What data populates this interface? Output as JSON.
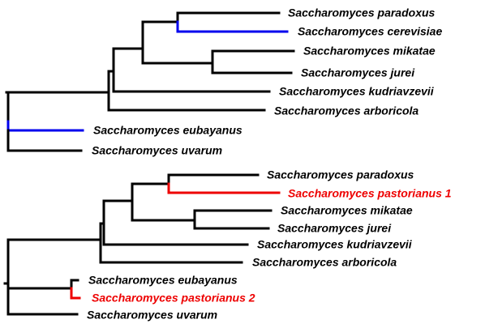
{
  "colors": {
    "default": "#000000",
    "hybrid_parent_branch": "#0000ee",
    "hybrid_branch": "#ee0000"
  },
  "trees": [
    {
      "leaves": [
        {
          "id": "paradoxus",
          "label": "Saccharomyces paradoxus",
          "highlight": "default"
        },
        {
          "id": "cerevisiae",
          "label": "Saccharomyces cerevisiae",
          "highlight": "hybrid_parent_branch"
        },
        {
          "id": "mikatae",
          "label": "Saccharomyces mikatae",
          "highlight": "default"
        },
        {
          "id": "jurei",
          "label": "Saccharomyces jurei",
          "highlight": "default"
        },
        {
          "id": "kudriavzevii",
          "label": "Saccharomyces kudriavzevii",
          "highlight": "default"
        },
        {
          "id": "arboricola",
          "label": "Saccharomyces arboricola",
          "highlight": "default"
        },
        {
          "id": "eubayanus",
          "label": "Saccharomyces eubayanus",
          "highlight": "hybrid_parent_branch"
        },
        {
          "id": "uvarum",
          "label": "Saccharomyces uvarum",
          "highlight": "default"
        }
      ]
    },
    {
      "leaves": [
        {
          "id": "paradoxus",
          "label": "Saccharomyces paradoxus",
          "highlight": "default"
        },
        {
          "id": "pastorianus1",
          "label": "Saccharomyces pastorianus 1",
          "highlight": "hybrid_branch"
        },
        {
          "id": "mikatae",
          "label": "Saccharomyces mikatae",
          "highlight": "default"
        },
        {
          "id": "jurei",
          "label": "Saccharomyces jurei",
          "highlight": "default"
        },
        {
          "id": "kudriavzevii",
          "label": "Saccharomyces kudriavzevii",
          "highlight": "default"
        },
        {
          "id": "arboricola",
          "label": "Saccharomyces arboricola",
          "highlight": "default"
        },
        {
          "id": "eubayanus",
          "label": "Saccharomyces eubayanus",
          "highlight": "default"
        },
        {
          "id": "pastorianus2",
          "label": "Saccharomyces pastorianus 2",
          "highlight": "hybrid_branch"
        },
        {
          "id": "uvarum",
          "label": "Saccharomyces uvarum",
          "highlight": "default"
        }
      ]
    }
  ]
}
